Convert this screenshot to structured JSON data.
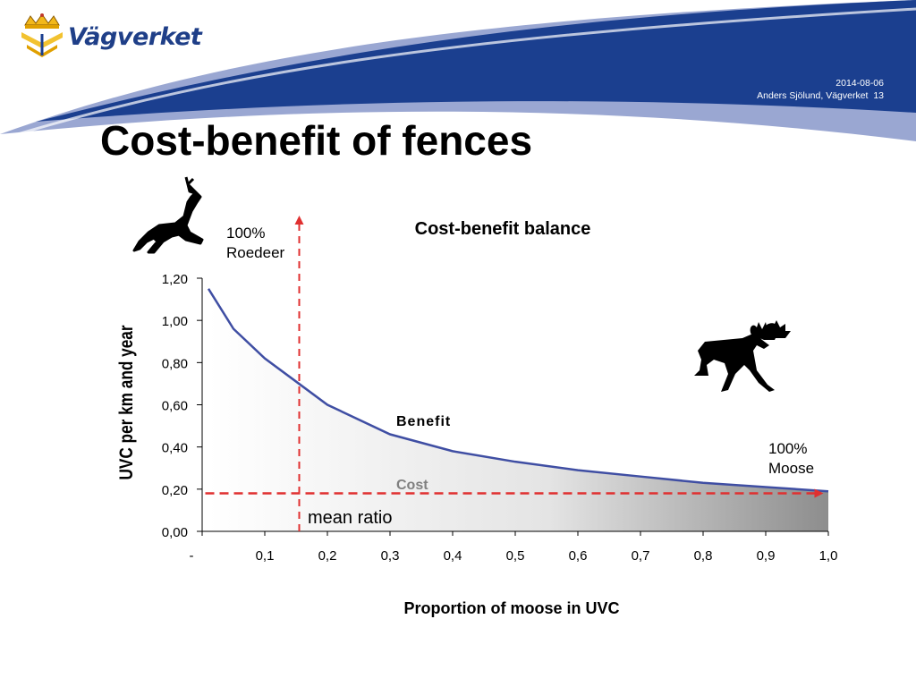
{
  "header": {
    "logo_text": "Vägverket",
    "date": "2014-08-06",
    "author": "Anders Sjölund, Vägverket",
    "page_number": "13"
  },
  "slide_title": "Cost-benefit of fences",
  "chart_data": {
    "type": "area",
    "title": "Cost-benefit balance",
    "xlabel": "Proportion of moose in UVC",
    "ylabel": "UVC per km and year",
    "xlim": [
      0,
      1.0
    ],
    "ylim": [
      0,
      1.2
    ],
    "x_tick_labels": [
      "-",
      "0,1",
      "0,2",
      "0,3",
      "0,4",
      "0,5",
      "0,6",
      "0,7",
      "0,8",
      "0,9",
      "1,0"
    ],
    "y_tick_labels": [
      "0,00",
      "0,20",
      "0,40",
      "0,60",
      "0,80",
      "1,00",
      "1,20"
    ],
    "series": [
      {
        "name": "Benefit",
        "color": "#3f4ea3",
        "x": [
          0.01,
          0.05,
          0.1,
          0.15,
          0.2,
          0.3,
          0.4,
          0.5,
          0.6,
          0.7,
          0.8,
          0.9,
          1.0
        ],
        "y": [
          1.15,
          0.96,
          0.82,
          0.71,
          0.6,
          0.46,
          0.38,
          0.33,
          0.29,
          0.26,
          0.23,
          0.21,
          0.19
        ]
      },
      {
        "name": "Cost",
        "color": "#808080",
        "x": [
          0.0,
          1.0
        ],
        "y": [
          0.18,
          0.18
        ]
      }
    ],
    "mean_ratio": {
      "label": "mean ratio",
      "y": 0.18,
      "color": "#e03030"
    },
    "marker_line": {
      "x": 0.155,
      "color": "#e03030"
    },
    "annotations": {
      "roedeer": "100%\nRoedeer",
      "moose": "100%\nMoose"
    },
    "icons": [
      "roe-deer-icon",
      "moose-icon"
    ]
  }
}
